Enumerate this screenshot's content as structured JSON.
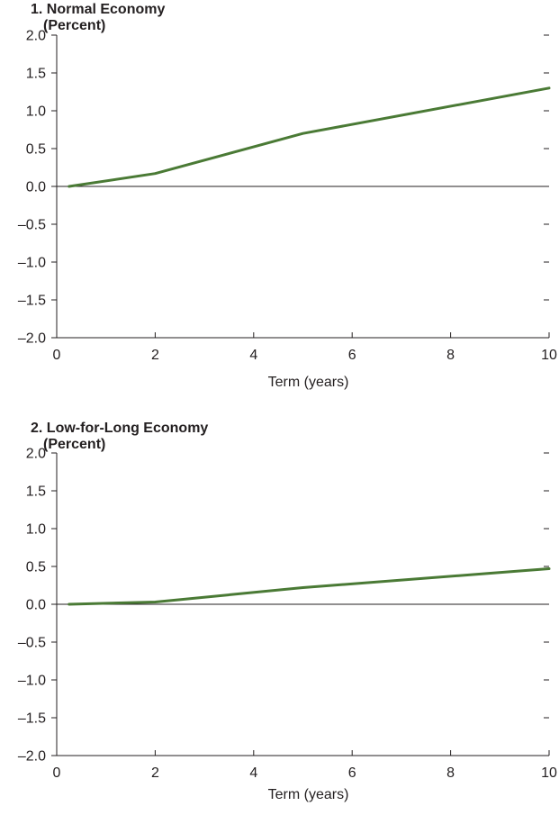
{
  "chart_data": [
    {
      "type": "line",
      "title": "1. Normal Economy",
      "subtitle": "(Percent)",
      "xlabel": "Term (years)",
      "ylabel": "",
      "xlim": [
        0,
        10
      ],
      "ylim": [
        -2.0,
        2.0
      ],
      "x_ticks": [
        "0",
        "2",
        "4",
        "6",
        "8",
        "10"
      ],
      "y_ticks": [
        "2.0",
        "1.5",
        "1.0",
        "0.5",
        "0.0",
        "–0.5",
        "–1.0",
        "–1.5",
        "–2.0"
      ],
      "zero_line": true,
      "grid": false,
      "series": [
        {
          "color": "#4a7a35",
          "x": [
            0.25,
            2,
            5,
            10
          ],
          "y": [
            0.0,
            0.17,
            0.7,
            1.3
          ]
        }
      ]
    },
    {
      "type": "line",
      "title": "2. Low-for-Long Economy",
      "subtitle": "(Percent)",
      "xlabel": "Term (years)",
      "ylabel": "",
      "xlim": [
        0,
        10
      ],
      "ylim": [
        -2.0,
        2.0
      ],
      "x_ticks": [
        "0",
        "2",
        "4",
        "6",
        "8",
        "10"
      ],
      "y_ticks": [
        "2.0",
        "1.5",
        "1.0",
        "0.5",
        "0.0",
        "–0.5",
        "–1.0",
        "–1.5",
        "–2.0"
      ],
      "zero_line": true,
      "grid": false,
      "series": [
        {
          "color": "#4a7a35",
          "x": [
            0.25,
            2,
            5,
            10
          ],
          "y": [
            0.0,
            0.03,
            0.22,
            0.47
          ]
        }
      ]
    }
  ]
}
